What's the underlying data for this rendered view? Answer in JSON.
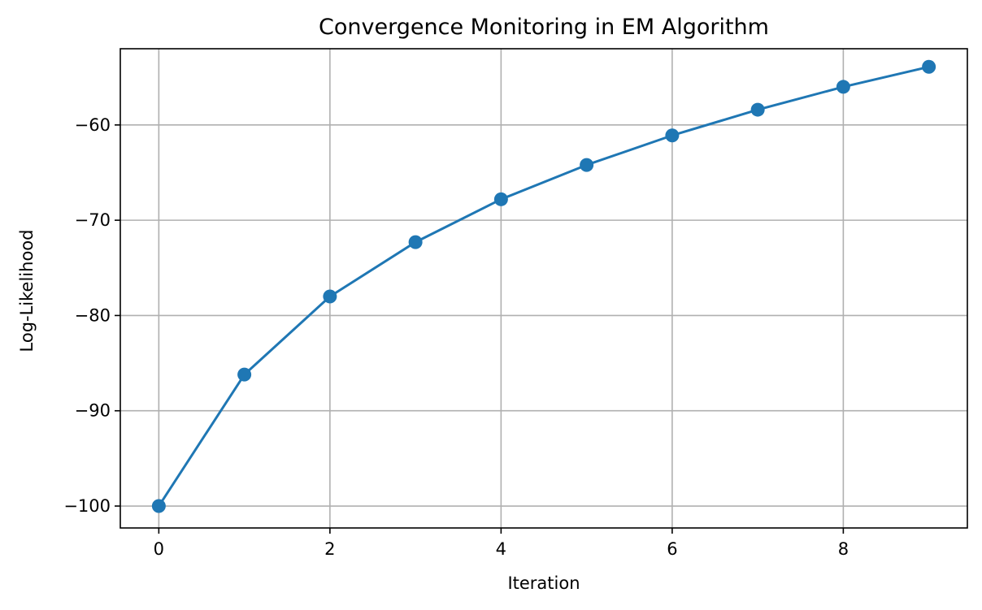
{
  "chart_data": {
    "type": "line",
    "title": "Convergence Monitoring in EM Algorithm",
    "xlabel": "Iteration",
    "ylabel": "Log-Likelihood",
    "xlim": [
      -0.45,
      9.45
    ],
    "ylim": [
      -102.3,
      -52
    ],
    "x_ticks": [
      0,
      2,
      4,
      6,
      8
    ],
    "y_ticks": [
      -100,
      -90,
      -80,
      -70,
      -60
    ],
    "grid": true,
    "legend": "none",
    "series": [
      {
        "x": [
          0,
          1,
          2,
          3,
          4,
          5,
          6,
          7,
          8,
          9
        ],
        "values": [
          -100.0,
          -86.2,
          -78.0,
          -72.3,
          -67.8,
          -64.2,
          -61.1,
          -58.4,
          -56.0,
          -53.9
        ],
        "color": "#1f77b4",
        "marker": "circle"
      }
    ]
  },
  "colors": {
    "series": "#1f77b4",
    "grid": "#b0b0b0"
  }
}
